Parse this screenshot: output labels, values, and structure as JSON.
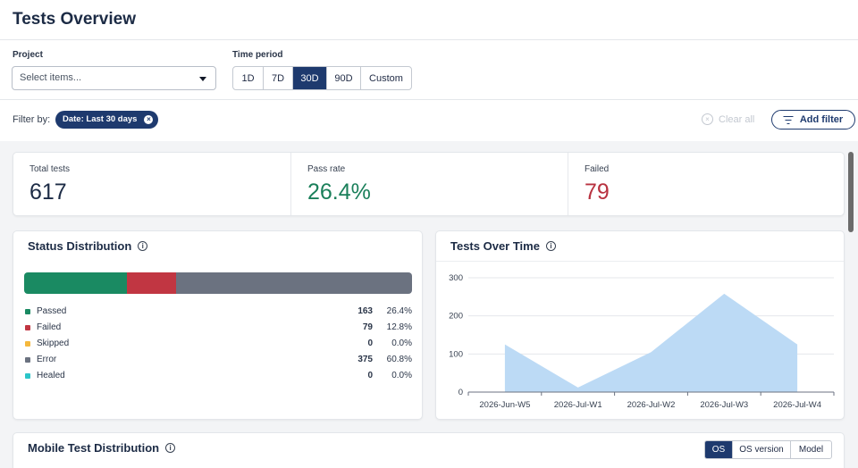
{
  "header": {
    "title": "Tests Overview"
  },
  "filters": {
    "project_label": "Project",
    "project_placeholder": "Select items...",
    "time_label": "Time period",
    "periods": [
      "1D",
      "7D",
      "30D",
      "90D",
      "Custom"
    ],
    "active_period": "30D"
  },
  "filterbar": {
    "label": "Filter by:",
    "chip": "Date: Last 30 days",
    "clear_all": "Clear all",
    "add_filter": "Add filter"
  },
  "stats": {
    "total": {
      "label": "Total tests",
      "value": "617"
    },
    "pass_rate": {
      "label": "Pass rate",
      "value": "26.4%",
      "color": "#1a7f5a"
    },
    "failed": {
      "label": "Failed",
      "value": "79",
      "color": "#b83240"
    }
  },
  "status_distribution": {
    "title": "Status Distribution",
    "items": [
      {
        "name": "Passed",
        "count": "163",
        "pct": "26.4%",
        "share": 26.4,
        "color": "#1a8a62"
      },
      {
        "name": "Failed",
        "count": "79",
        "pct": "12.8%",
        "share": 12.8,
        "color": "#c13642"
      },
      {
        "name": "Skipped",
        "count": "0",
        "pct": "0.0%",
        "share": 0,
        "color": "#f5b83d"
      },
      {
        "name": "Error",
        "count": "375",
        "pct": "60.8%",
        "share": 60.8,
        "color": "#6b7280"
      },
      {
        "name": "Healed",
        "count": "0",
        "pct": "0.0%",
        "share": 0,
        "color": "#2cc5c8"
      }
    ]
  },
  "tests_over_time": {
    "title": "Tests Over Time"
  },
  "chart_data": {
    "type": "area",
    "categories": [
      "2026-Jun-W5",
      "2026-Jul-W1",
      "2026-Jul-W2",
      "2026-Jul-W3",
      "2026-Jul-W4"
    ],
    "values": [
      125,
      12,
      105,
      258,
      125
    ],
    "yticks": [
      "0",
      "100",
      "200",
      "300"
    ],
    "ylim": [
      0,
      300
    ],
    "grid": true,
    "color": "#bcdaf5"
  },
  "mobile": {
    "title": "Mobile Test Distribution",
    "tabs": [
      "OS",
      "OS version",
      "Model"
    ],
    "active_tab": "OS"
  }
}
